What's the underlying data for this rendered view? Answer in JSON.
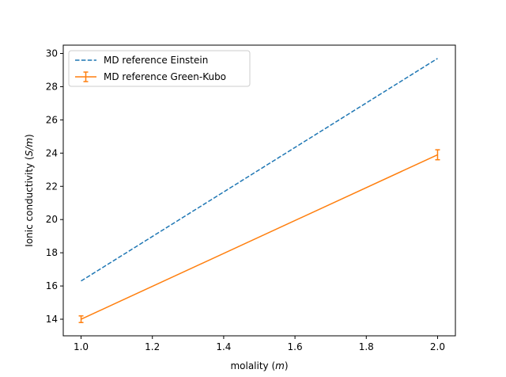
{
  "chart_data": {
    "type": "line",
    "title": "",
    "xlabel": "molality",
    "xlabel_unit": "m",
    "ylabel": "Ionic conductivity",
    "ylabel_unit": "S/m",
    "xlim": [
      0.95,
      2.05
    ],
    "ylim": [
      13.0,
      30.5
    ],
    "x_ticks": [
      1.0,
      1.2,
      1.4,
      1.6,
      1.8,
      2.0
    ],
    "x_tick_labels": [
      "1.0",
      "1.2",
      "1.4",
      "1.6",
      "1.8",
      "2.0"
    ],
    "y_ticks": [
      14,
      16,
      18,
      20,
      22,
      24,
      26,
      28,
      30
    ],
    "y_tick_labels": [
      "14",
      "16",
      "18",
      "20",
      "22",
      "24",
      "26",
      "28",
      "30"
    ],
    "grid": false,
    "legend_position": "upper-left",
    "series": [
      {
        "name": "MD reference Einstein",
        "x": [
          1.0,
          2.0
        ],
        "y": [
          16.3,
          29.7
        ],
        "color": "#1f77b4",
        "style": "dashed"
      },
      {
        "name": "MD reference Green-Kubo",
        "x": [
          1.0,
          2.0
        ],
        "y": [
          14.0,
          23.9
        ],
        "yerr": [
          0.2,
          0.3
        ],
        "color": "#ff7f0e",
        "style": "solid"
      }
    ]
  }
}
